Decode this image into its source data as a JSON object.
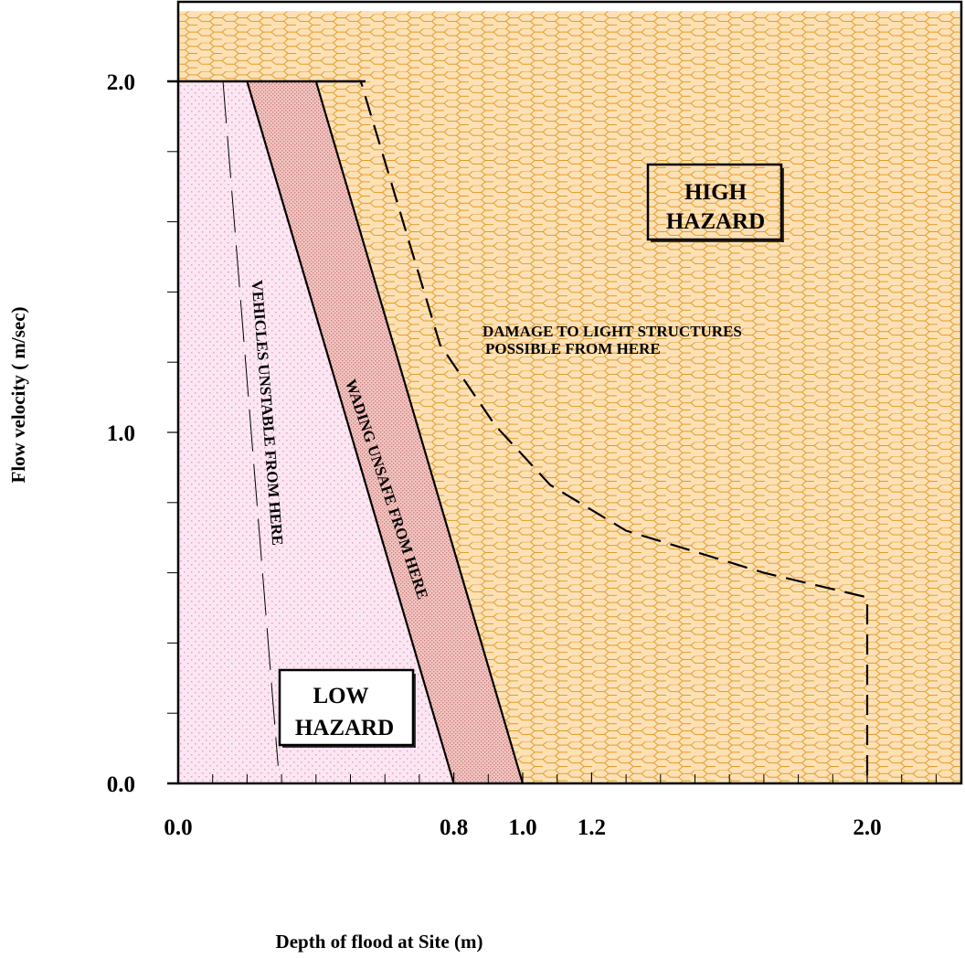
{
  "chart_data": {
    "type": "area",
    "xlabel": "Depth of flood at Site (m)",
    "ylabel": "Flow velocity ( m/sec)",
    "xlim": [
      0,
      2.27
    ],
    "ylim": [
      0,
      2.2
    ],
    "x_tick_labels": [
      {
        "value": 0.0,
        "label": "0.0"
      },
      {
        "value": 0.8,
        "label": "0.8"
      },
      {
        "value": 1.0,
        "label": "1.0"
      },
      {
        "value": 1.2,
        "label": "1.2"
      },
      {
        "value": 2.0,
        "label": "2.0"
      }
    ],
    "y_tick_labels": [
      {
        "value": 0.0,
        "label": "0.0"
      },
      {
        "value": 1.0,
        "label": "1.0"
      },
      {
        "value": 2.0,
        "label": "2.0"
      }
    ],
    "x_minor_ticks": [
      0.1,
      0.2,
      0.3,
      0.4,
      0.5,
      0.6,
      0.7,
      0.9,
      1.1,
      1.3,
      1.4,
      1.5,
      1.6,
      1.7,
      1.8,
      1.9,
      2.1,
      2.2
    ],
    "y_minor_ticks": [
      0.2,
      0.4,
      0.6,
      0.8,
      1.2,
      1.4,
      1.6,
      1.8
    ],
    "regions": [
      {
        "name": "low-hazard-zone",
        "fill": "#fbe7f1",
        "polygon": [
          [
            0,
            0
          ],
          [
            0,
            2.0
          ],
          [
            0.2,
            2.0
          ],
          [
            0.8,
            0
          ]
        ]
      },
      {
        "name": "wading-band",
        "fill": "#f3c6c2",
        "polygon": [
          [
            0.2,
            2.0
          ],
          [
            0.4,
            2.0
          ],
          [
            1.0,
            0
          ],
          [
            0.8,
            0
          ]
        ]
      },
      {
        "name": "high-hazard-zone",
        "fill": "#fde1b5",
        "hatch": "hexagon",
        "polygon": [
          [
            0,
            2.0
          ],
          [
            0,
            2.2
          ],
          [
            2.27,
            2.2
          ],
          [
            2.27,
            0
          ],
          [
            1.0,
            0
          ],
          [
            0.4,
            2.0
          ]
        ]
      }
    ],
    "boundaries": [
      {
        "name": "wading-unsafe-line",
        "style": "solid",
        "points": [
          [
            0.2,
            2.0
          ],
          [
            0.8,
            0
          ]
        ]
      },
      {
        "name": "high-hazard-line",
        "style": "solid",
        "points": [
          [
            0.4,
            2.0
          ],
          [
            1.0,
            0
          ]
        ]
      },
      {
        "name": "vehicles-unstable-line",
        "style": "dashed",
        "points": [
          [
            0.13,
            2.0
          ],
          [
            0.29,
            0.05
          ]
        ]
      },
      {
        "name": "light-structures-line",
        "style": "dashed",
        "points": [
          [
            0.4,
            2.0
          ],
          [
            0.53,
            2.0
          ],
          [
            0.76,
            1.25
          ],
          [
            0.92,
            1.02
          ],
          [
            1.08,
            0.85
          ],
          [
            1.3,
            0.72
          ],
          [
            1.7,
            0.6
          ],
          [
            2.0,
            0.53
          ],
          [
            2.0,
            0
          ]
        ]
      }
    ],
    "labels": {
      "high_hazard": [
        "HIGH",
        "HAZARD"
      ],
      "low_hazard": [
        "LOW",
        "HAZARD"
      ],
      "vehicles": "VEHICLES UNSTABLE FROM HERE",
      "wading": "WADING UNSAFE FROM HERE",
      "damage": [
        "DAMAGE TO LIGHT STRUCTURES",
        "POSSIBLE FROM HERE"
      ]
    },
    "colors": {
      "frame": "#000000",
      "hex_stroke": "#e09a2a",
      "low_dots": "#e79bd0",
      "band_dots": "#c98080"
    }
  }
}
